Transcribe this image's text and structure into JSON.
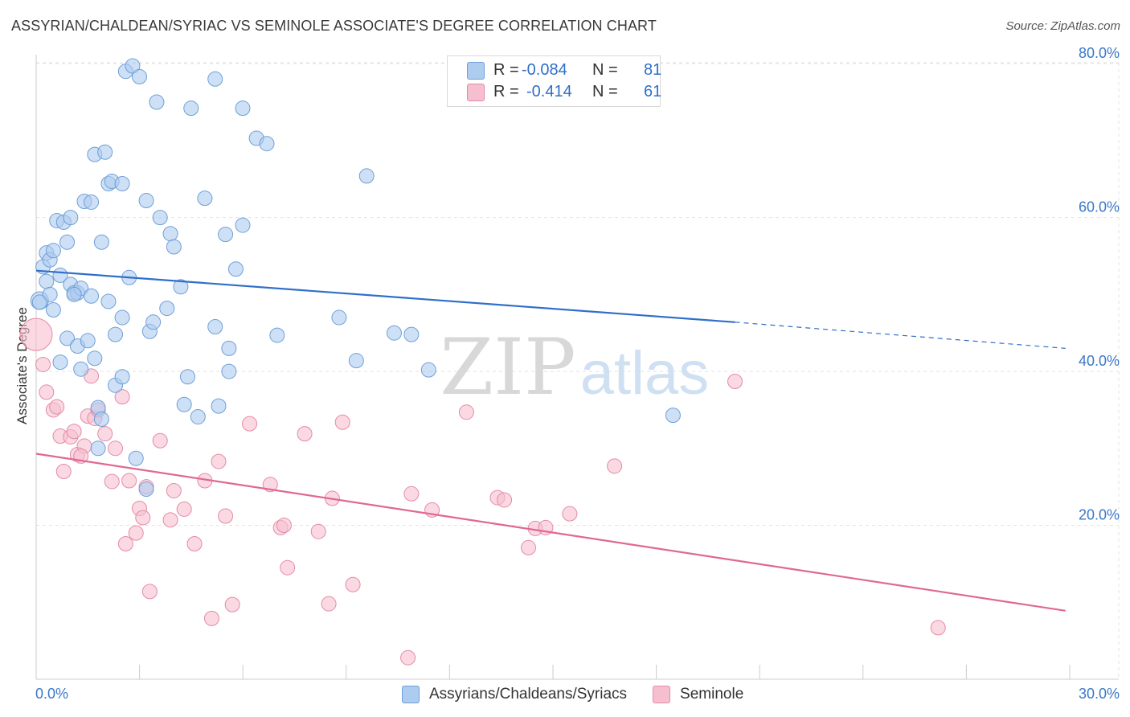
{
  "header": {
    "title": "ASSYRIAN/CHALDEAN/SYRIAC VS SEMINOLE ASSOCIATE'S DEGREE CORRELATION CHART",
    "source": "Source: ZipAtlas.com"
  },
  "watermark": {
    "zip": "ZIP",
    "atlas": "atlas"
  },
  "colors": {
    "blue_fill": "#aecbf0",
    "blue_stroke": "#6f9fd8",
    "blue_line": "#2f6fca",
    "pink_fill": "#f6bfd0",
    "pink_stroke": "#e58aa7",
    "pink_line": "#e06892",
    "axis_text": "#3a78c9",
    "grid": "#e3e3e3"
  },
  "legend": {
    "r_label": "R =",
    "n_label": "N =",
    "rows": [
      {
        "r": "-0.084",
        "n": "81"
      },
      {
        "r": "-0.414",
        "n": "61"
      }
    ]
  },
  "bottom_legend": [
    "Assyrians/Chaldeans/Syriacs",
    "Seminole"
  ],
  "chart_data": {
    "type": "scatter",
    "title": "ASSYRIAN/CHALDEAN/SYRIAC VS SEMINOLE ASSOCIATE'S DEGREE CORRELATION CHART",
    "xlabel": "",
    "ylabel": "Associate's Degree",
    "xlim": [
      0,
      30
    ],
    "ylim": [
      0,
      82
    ],
    "x_tick_labels": [
      "0.0%",
      "30.0%"
    ],
    "y_ticks": [
      20,
      40,
      60,
      80
    ],
    "y_tick_labels": [
      "20.0%",
      "40.0%",
      "60.0%",
      "80.0%"
    ],
    "grid": true,
    "series": [
      {
        "name": "Assyrians/Chaldeans/Syriacs",
        "R": -0.084,
        "N": 81,
        "trend": {
          "x0": 0,
          "y0": 53.1,
          "x1": 20.3,
          "y1": 46.4,
          "x_dash_end": 29.9,
          "y_dash_end": 43.0
        },
        "points": [
          [
            0.1,
            49.2
          ],
          [
            0.2,
            53.6
          ],
          [
            0.3,
            51.7
          ],
          [
            0.3,
            55.4
          ],
          [
            0.4,
            54.5
          ],
          [
            0.4,
            50.0
          ],
          [
            0.5,
            48.0
          ],
          [
            0.5,
            55.7
          ],
          [
            0.6,
            59.6
          ],
          [
            0.7,
            52.5
          ],
          [
            0.7,
            41.2
          ],
          [
            0.8,
            59.4
          ],
          [
            0.9,
            56.8
          ],
          [
            0.9,
            44.3
          ],
          [
            1.0,
            51.3
          ],
          [
            1.0,
            60.0
          ],
          [
            1.1,
            50.2
          ],
          [
            1.2,
            50.2
          ],
          [
            1.2,
            43.3
          ],
          [
            1.3,
            50.8
          ],
          [
            1.3,
            40.3
          ],
          [
            1.4,
            62.1
          ],
          [
            1.5,
            44.0
          ],
          [
            1.6,
            62.0
          ],
          [
            1.6,
            49.8
          ],
          [
            1.7,
            68.2
          ],
          [
            1.7,
            41.7
          ],
          [
            1.8,
            35.3
          ],
          [
            1.8,
            30.0
          ],
          [
            1.9,
            56.8
          ],
          [
            1.9,
            33.8
          ],
          [
            2.0,
            68.5
          ],
          [
            2.1,
            49.1
          ],
          [
            2.1,
            64.4
          ],
          [
            2.2,
            64.7
          ],
          [
            2.3,
            44.8
          ],
          [
            2.3,
            38.2
          ],
          [
            2.5,
            64.4
          ],
          [
            2.5,
            39.3
          ],
          [
            2.5,
            47.0
          ],
          [
            2.6,
            79.0
          ],
          [
            2.7,
            52.2
          ],
          [
            2.8,
            79.7
          ],
          [
            2.9,
            28.7
          ],
          [
            3.0,
            78.3
          ],
          [
            3.2,
            62.2
          ],
          [
            3.2,
            24.7
          ],
          [
            3.3,
            45.2
          ],
          [
            3.4,
            46.4
          ],
          [
            3.5,
            75.0
          ],
          [
            3.6,
            60.0
          ],
          [
            3.8,
            48.2
          ],
          [
            3.9,
            57.9
          ],
          [
            4.0,
            56.2
          ],
          [
            4.2,
            51.0
          ],
          [
            4.3,
            35.7
          ],
          [
            4.4,
            39.3
          ],
          [
            4.5,
            74.2
          ],
          [
            4.7,
            34.1
          ],
          [
            4.9,
            62.5
          ],
          [
            5.2,
            78.0
          ],
          [
            5.2,
            45.8
          ],
          [
            5.3,
            35.5
          ],
          [
            5.5,
            57.8
          ],
          [
            5.6,
            43.0
          ],
          [
            5.6,
            40.0
          ],
          [
            5.8,
            53.3
          ],
          [
            6.0,
            59.0
          ],
          [
            6.0,
            74.2
          ],
          [
            6.4,
            70.3
          ],
          [
            6.7,
            69.6
          ],
          [
            7.0,
            44.7
          ],
          [
            8.8,
            47.0
          ],
          [
            9.3,
            41.4
          ],
          [
            9.6,
            65.4
          ],
          [
            10.4,
            45.0
          ],
          [
            10.9,
            44.8
          ],
          [
            11.4,
            40.2
          ],
          [
            18.5,
            34.3
          ],
          [
            0.1,
            49.0
          ],
          [
            1.1,
            50.0
          ]
        ]
      },
      {
        "name": "Seminole",
        "R": -0.414,
        "N": 61,
        "trend": {
          "x0": 0,
          "y0": 29.3,
          "x1": 29.9,
          "y1": 8.9
        },
        "points": [
          [
            0.0,
            44.8
          ],
          [
            0.2,
            40.9
          ],
          [
            0.3,
            37.3
          ],
          [
            0.5,
            35.0
          ],
          [
            0.6,
            35.4
          ],
          [
            0.7,
            31.6
          ],
          [
            0.8,
            27.0
          ],
          [
            1.0,
            31.5
          ],
          [
            1.1,
            32.2
          ],
          [
            1.2,
            29.2
          ],
          [
            1.4,
            30.3
          ],
          [
            1.5,
            34.2
          ],
          [
            1.6,
            39.4
          ],
          [
            1.7,
            33.9
          ],
          [
            1.8,
            35.0
          ],
          [
            2.0,
            31.9
          ],
          [
            2.2,
            25.7
          ],
          [
            2.3,
            30.0
          ],
          [
            2.5,
            36.7
          ],
          [
            2.6,
            17.6
          ],
          [
            2.7,
            25.8
          ],
          [
            2.9,
            19.0
          ],
          [
            3.0,
            22.2
          ],
          [
            3.1,
            21.0
          ],
          [
            3.2,
            25.0
          ],
          [
            3.3,
            11.4
          ],
          [
            3.6,
            31.0
          ],
          [
            3.9,
            20.7
          ],
          [
            4.0,
            24.5
          ],
          [
            4.3,
            22.1
          ],
          [
            4.6,
            17.6
          ],
          [
            4.9,
            25.8
          ],
          [
            5.1,
            7.9
          ],
          [
            5.3,
            28.3
          ],
          [
            5.5,
            21.2
          ],
          [
            5.7,
            9.7
          ],
          [
            6.2,
            33.2
          ],
          [
            6.8,
            25.3
          ],
          [
            7.1,
            19.7
          ],
          [
            7.2,
            20.0
          ],
          [
            7.3,
            14.5
          ],
          [
            7.8,
            31.9
          ],
          [
            8.2,
            19.2
          ],
          [
            8.5,
            9.8
          ],
          [
            8.6,
            23.5
          ],
          [
            8.9,
            33.4
          ],
          [
            9.2,
            12.3
          ],
          [
            10.8,
            2.8
          ],
          [
            10.9,
            24.1
          ],
          [
            11.5,
            22.0
          ],
          [
            12.5,
            34.7
          ],
          [
            13.4,
            23.6
          ],
          [
            13.6,
            23.3
          ],
          [
            14.3,
            17.1
          ],
          [
            14.5,
            19.6
          ],
          [
            14.8,
            19.7
          ],
          [
            15.5,
            21.5
          ],
          [
            16.8,
            27.7
          ],
          [
            20.3,
            38.7
          ],
          [
            26.2,
            6.7
          ],
          [
            1.3,
            29.0
          ]
        ]
      }
    ]
  }
}
